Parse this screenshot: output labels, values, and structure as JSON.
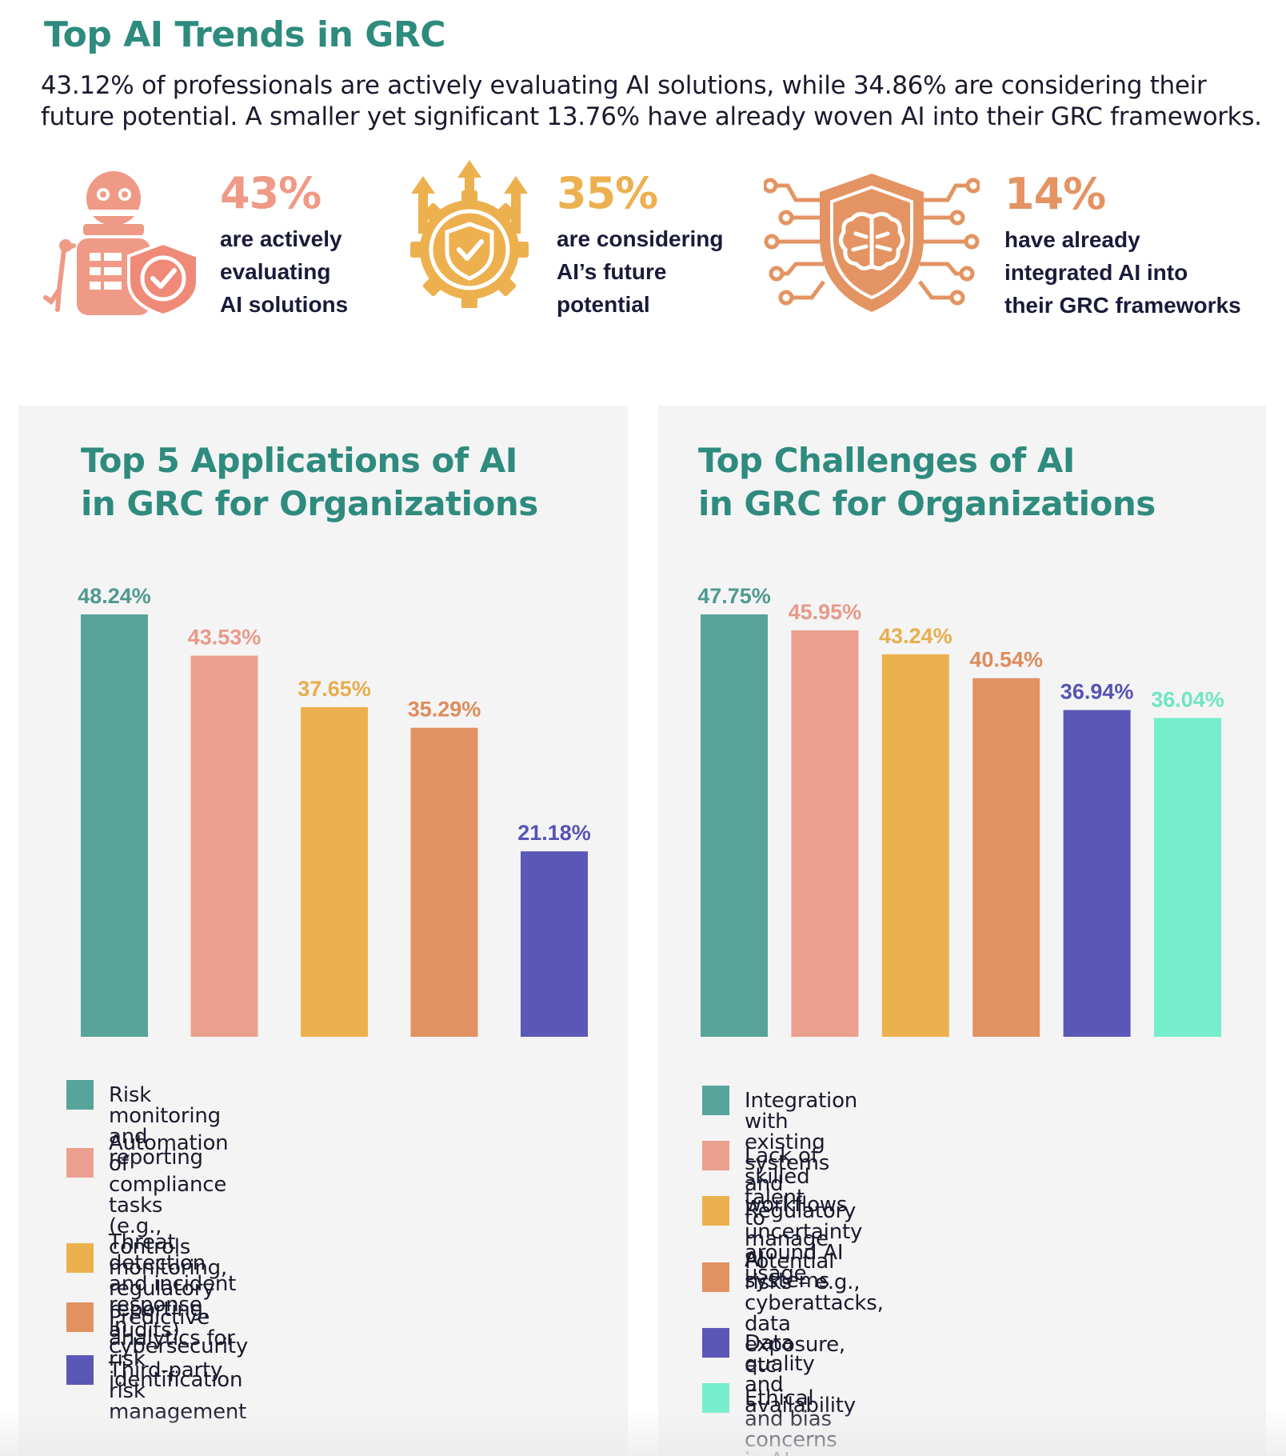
{
  "header": {
    "title": "Top AI Trends in GRC",
    "subtitle_line1": "43.12% of professionals are actively evaluating AI solutions, while 34.86% are considering their",
    "subtitle_line2": "future potential. A smaller yet significant 13.76% have already woven AI into their GRC frameworks."
  },
  "stats": [
    {
      "percent": "43%",
      "lines": [
        "are actively",
        "evaluating",
        "AI solutions"
      ],
      "color": "#ef9a86",
      "icon": "robot-shield-icon"
    },
    {
      "percent": "35%",
      "lines": [
        "are considering",
        "AI’s future",
        "potential"
      ],
      "color": "#edb04f",
      "icon": "gear-shield-arrows-icon"
    },
    {
      "percent": "14%",
      "lines": [
        "have already",
        "integrated AI into",
        "their GRC frameworks"
      ],
      "color": "#e39462",
      "icon": "brain-circuit-shield-icon"
    }
  ],
  "colors": {
    "teal": "#58a39a",
    "salmon": "#eba08f",
    "yellow": "#ecb14f",
    "orange": "#e29262",
    "purple": "#5b57b7",
    "mint": "#76eecb"
  },
  "chart_data": [
    {
      "type": "bar",
      "title_line1": "Top 5 Applications of AI",
      "title_line2": "in GRC for Organizations",
      "categories": [
        "Risk monitoring and reporting",
        "Automation of compliance tasks (e.g., controls monitoring, regulatory reporting, audits)",
        "Threat detection and incident response in cybersecurity",
        "Predictive analytics for risk identification",
        "Third-party risk management"
      ],
      "values": [
        48.24,
        43.53,
        37.65,
        35.29,
        21.18
      ],
      "value_labels": [
        "48.24%",
        "43.53%",
        "37.65%",
        "35.29%",
        "21.18%"
      ],
      "legend": [
        [
          "Risk monitoring and reporting"
        ],
        [
          "Automation of compliance tasks",
          "(e.g., controls monitoring, regulatory",
          "reporting, audits)"
        ],
        [
          "Threat detection and incident response",
          "in cybersecurity"
        ],
        [
          "Predictive analytics for risk identification"
        ],
        [
          "Third-party risk management"
        ]
      ],
      "bar_colors": [
        "#58a39a",
        "#eba08f",
        "#ecb14f",
        "#e29262",
        "#5b57b7"
      ],
      "label_colors": [
        "#4f9a90",
        "#e8998a",
        "#e8ad4d",
        "#dd8c5c",
        "#5753b3"
      ],
      "xlabel": "",
      "ylabel": "",
      "ylim": [
        0,
        48.24
      ],
      "grid": false
    },
    {
      "type": "bar",
      "title_line1": "Top Challenges of AI",
      "title_line2": "in GRC for Organizations",
      "categories": [
        "Integration with existing systems and workflows",
        "Lack of skilled talent to manage AI systems",
        "Regulatory uncertainty around AI usage",
        "Potential risks – e.g., cyberattacks, data exposure, etc.",
        "Data quality and availability",
        "Ethical and bias concerns in AI algorithms"
      ],
      "values": [
        47.75,
        45.95,
        43.24,
        40.54,
        36.94,
        36.04
      ],
      "value_labels": [
        "47.75%",
        "45.95%",
        "43.24%",
        "40.54%",
        "36.94%",
        "36.04%"
      ],
      "legend": [
        [
          "Integration with existing systems and workflows"
        ],
        [
          "Lack of skilled talent to manage AI systems"
        ],
        [
          "Regulatory uncertainty around AI usage"
        ],
        [
          "Potential risks – e.g., cyberattacks, data",
          "exposure, etc."
        ],
        [
          "Data quality and availability"
        ],
        [
          "Ethical and bias concerns in AI algorithms"
        ]
      ],
      "bar_colors": [
        "#58a39a",
        "#eba08f",
        "#ecb14f",
        "#e29262",
        "#5b57b7",
        "#76eecb"
      ],
      "label_colors": [
        "#4f9a90",
        "#e8998a",
        "#e8ad4d",
        "#dd8c5c",
        "#5753b3",
        "#6ee6c4"
      ],
      "xlabel": "",
      "ylabel": "",
      "ylim": [
        0,
        47.75
      ],
      "grid": false
    }
  ]
}
